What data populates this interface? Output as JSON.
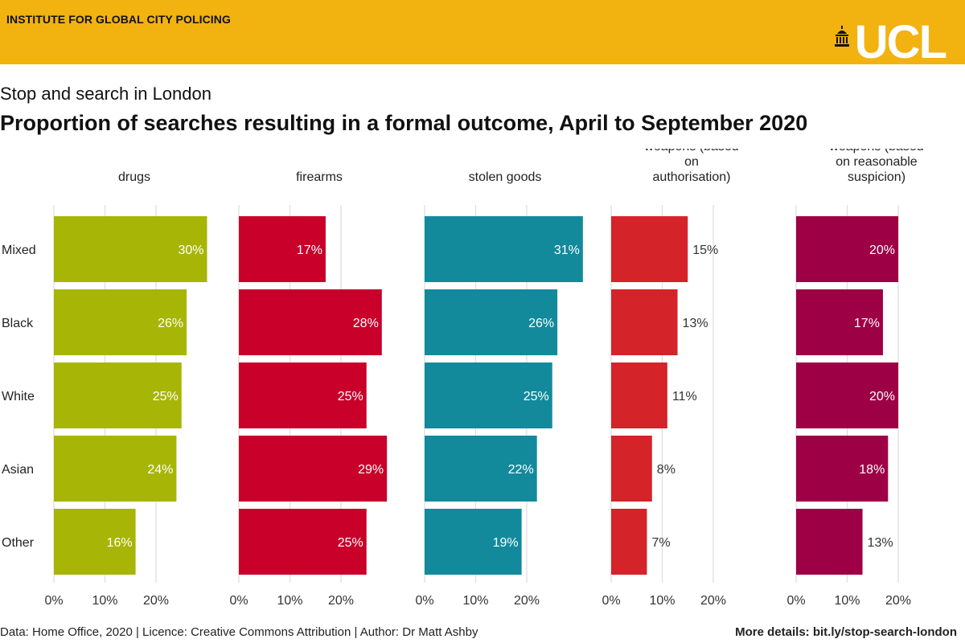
{
  "header": {
    "org": "INSTITUTE FOR GLOBAL CITY POLICING",
    "logo_text": "UCL",
    "logo_icon": "portico-icon"
  },
  "subtitle": "Stop and search in London",
  "title": "Proportion of searches resulting in a formal outcome, April to September 2020",
  "footer": {
    "left": "Data: Home Office, 2020 | Licence: Creative Commons Attribution | Author: Dr Matt Ashby",
    "right": "More details: bit.ly/stop-search-london"
  },
  "colors": {
    "banner": "#F2B20F",
    "drugs": "#A7B506",
    "firearms": "#C8002A",
    "stolen_goods": "#128A9C",
    "weapons_authorisation": "#D5232A",
    "weapons_suspicion": "#9D0045"
  },
  "chart_data": {
    "type": "bar",
    "orientation": "horizontal",
    "facets": true,
    "categories": [
      "Mixed",
      "Black",
      "White",
      "Asian",
      "Other"
    ],
    "x_ticks": [
      "0%",
      "10%",
      "20%"
    ],
    "xlim": [
      0,
      35
    ],
    "grid": true,
    "series": [
      {
        "name": "drugs",
        "color": "#A7B506",
        "values": [
          30,
          26,
          25,
          24,
          16
        ],
        "labels": [
          "30%",
          "26%",
          "25%",
          "24%",
          "16%"
        ],
        "label_position": "inside"
      },
      {
        "name": "firearms",
        "color": "#C8002A",
        "values": [
          17,
          28,
          25,
          29,
          25
        ],
        "labels": [
          "17%",
          "28%",
          "25%",
          "29%",
          "25%"
        ],
        "label_position": "inside"
      },
      {
        "name": "stolen goods",
        "color": "#128A9C",
        "values": [
          31,
          26,
          25,
          22,
          19
        ],
        "labels": [
          "31%",
          "26%",
          "25%",
          "22%",
          "19%"
        ],
        "label_position": "inside"
      },
      {
        "name": "weapons (based on authorisation)",
        "title_lines": [
          "weapons (based",
          "on",
          "authorisation)"
        ],
        "color": "#D5232A",
        "values": [
          15,
          13,
          11,
          8,
          7
        ],
        "labels": [
          "15%",
          "13%",
          "11%",
          "8%",
          "7%"
        ],
        "label_position": "outside"
      },
      {
        "name": "weapons (based on reasonable suspicion)",
        "title_lines": [
          "weapons (based",
          "on reasonable",
          "suspicion)"
        ],
        "color": "#9D0045",
        "values": [
          20,
          17,
          20,
          18,
          13
        ],
        "labels": [
          "20%",
          "17%",
          "20%",
          "18%",
          "13%"
        ],
        "label_position": "mixed",
        "outside_indices": [
          4
        ]
      }
    ]
  }
}
